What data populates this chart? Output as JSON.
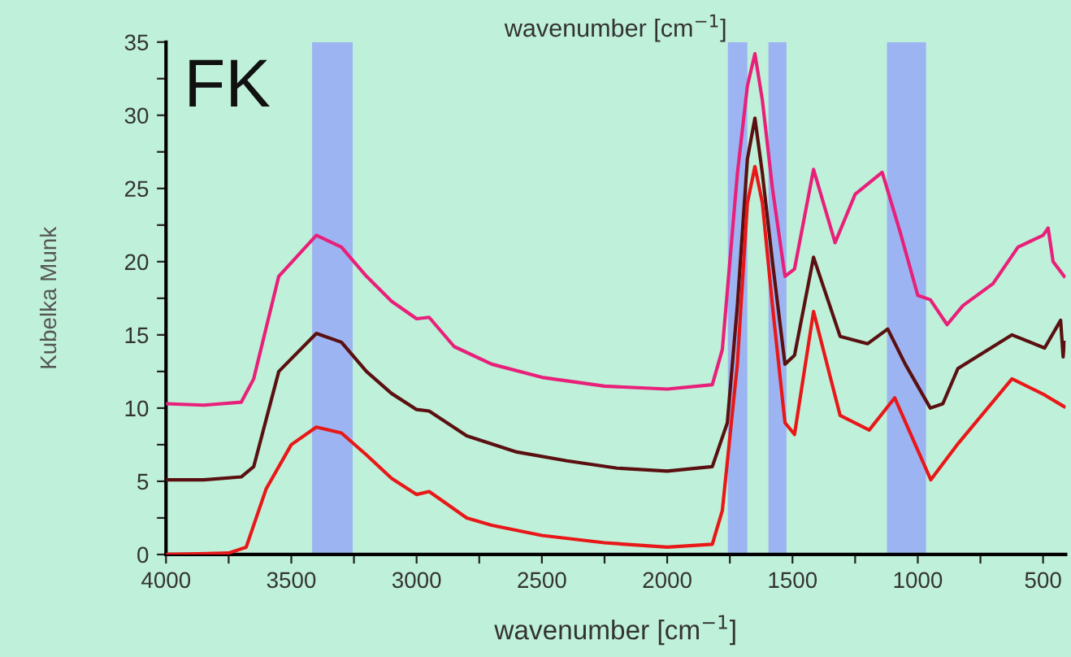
{
  "chart_data": {
    "type": "line",
    "title": "wavenumber [cm$^{−1}$]",
    "xlabel": "wavenumber [cm$^{−1}$]",
    "ylabel": "Kubelka Munk",
    "annotations": [
      "FK"
    ],
    "xlim": [
      4000,
      410
    ],
    "ylim": [
      0,
      35
    ],
    "xticks": [
      4000,
      {
        "value": 3750,
        "label": null
      },
      3500,
      {
        "value": 3250,
        "label": null
      },
      3000,
      {
        "value": 2750,
        "label": null
      },
      2500,
      {
        "value": 2250,
        "label": null
      },
      2000,
      {
        "value": 1750,
        "label": null
      },
      1500,
      {
        "value": 1250,
        "label": null
      },
      1000,
      {
        "value": 750,
        "label": null
      },
      500
    ],
    "yticks": [
      0,
      {
        "value": 2.5,
        "label": null
      },
      5,
      {
        "value": 7.5,
        "label": null
      },
      10,
      {
        "value": 12.5,
        "label": null
      },
      15,
      {
        "value": 17.5,
        "label": null
      },
      20,
      {
        "value": 22.5,
        "label": null
      },
      25,
      {
        "value": 27.5,
        "label": null
      },
      30,
      {
        "value": 32.5,
        "label": null
      },
      35
    ],
    "bands": [
      {
        "axis": "x",
        "from": 3417,
        "to": 3255,
        "color": "#9db4f2"
      },
      {
        "axis": "x",
        "from": 1758,
        "to": 1680,
        "color": "#9db4f2"
      },
      {
        "axis": "x",
        "from": 1596,
        "to": 1524,
        "color": "#9db4f2"
      },
      {
        "axis": "x",
        "from": 1123,
        "to": 967,
        "color": "#9db4f2"
      }
    ],
    "series": [
      {
        "color": "#e8207a",
        "x": [
          4000,
          3850,
          3700,
          3650,
          3550,
          3400,
          3300,
          3200,
          3100,
          3000,
          2950,
          2850,
          2700,
          2500,
          2250,
          2000,
          1820,
          1780,
          1720,
          1680,
          1650,
          1620,
          1580,
          1530,
          1492,
          1416,
          1330,
          1250,
          1142,
          1070,
          1000,
          950,
          883,
          820,
          700,
          600,
          500,
          480,
          460,
          416
        ],
        "values": [
          10.3,
          10.2,
          10.4,
          12,
          19,
          21.8,
          21,
          19,
          17.3,
          16.1,
          16.2,
          14.2,
          13,
          12.1,
          11.5,
          11.3,
          11.6,
          14,
          26,
          32,
          34.2,
          31,
          25,
          19,
          19.5,
          26.3,
          21.3,
          24.6,
          26.1,
          22,
          17.7,
          17.4,
          15.7,
          17,
          18.5,
          21,
          21.8,
          22.3,
          20,
          19
        ]
      },
      {
        "color": "#5a1010",
        "x": [
          4000,
          3850,
          3700,
          3650,
          3550,
          3400,
          3300,
          3200,
          3100,
          3000,
          2950,
          2800,
          2600,
          2400,
          2200,
          2000,
          1820,
          1760,
          1720,
          1680,
          1650,
          1620,
          1580,
          1530,
          1492,
          1416,
          1310,
          1200,
          1120,
          1050,
          950,
          900,
          840,
          624,
          494,
          430,
          420,
          416
        ],
        "values": [
          5.1,
          5.1,
          5.3,
          6,
          12.5,
          15.1,
          14.5,
          12.5,
          11,
          9.9,
          9.8,
          8.1,
          7,
          6.4,
          5.9,
          5.7,
          6,
          9,
          17,
          27,
          29.8,
          26,
          20,
          13,
          13.6,
          20.3,
          14.9,
          14.4,
          15.4,
          13,
          10,
          10.3,
          12.7,
          15,
          14.1,
          16,
          13.5,
          14.5
        ]
      },
      {
        "color": "#e81818",
        "x": [
          4000,
          3750,
          3680,
          3600,
          3500,
          3400,
          3300,
          3200,
          3100,
          3000,
          2950,
          2900,
          2800,
          2700,
          2500,
          2250,
          2000,
          1820,
          1780,
          1720,
          1680,
          1650,
          1620,
          1580,
          1530,
          1492,
          1416,
          1310,
          1194,
          1092,
          948,
          838,
          624,
          494,
          416
        ],
        "values": [
          0,
          0.1,
          0.5,
          4.5,
          7.5,
          8.7,
          8.3,
          6.8,
          5.2,
          4.1,
          4.3,
          3.7,
          2.5,
          2,
          1.3,
          0.8,
          0.5,
          0.7,
          3,
          13,
          24,
          26.5,
          24,
          17,
          9,
          8.2,
          16.6,
          9.5,
          8.5,
          10.7,
          5.1,
          7.6,
          12,
          10.9,
          10.1
        ]
      }
    ]
  }
}
